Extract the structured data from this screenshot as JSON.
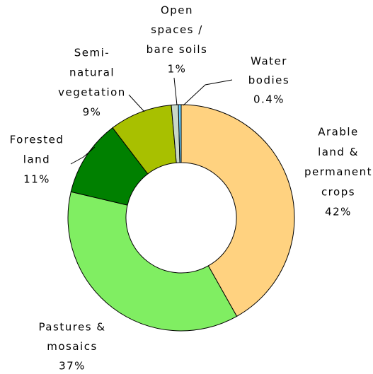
{
  "chart_data": {
    "type": "pie",
    "categories": [
      [
        "Arable",
        "land &",
        "permanent",
        "crops"
      ],
      [
        "Pastures &",
        "mosaics"
      ],
      [
        "Forested",
        "land"
      ],
      [
        "Semi-",
        "natural",
        "vegetation"
      ],
      [
        "Open",
        "spaces /",
        "bare soils"
      ],
      [
        "Water",
        "bodies"
      ]
    ],
    "values": [
      42,
      37,
      11,
      9,
      1,
      0.4
    ],
    "value_labels": [
      "42%",
      "37%",
      "11%",
      "9%",
      "1%",
      "0.4%"
    ],
    "colors": [
      "#ffd280",
      "#80ee62",
      "#008000",
      "#a8c000",
      "#c8d8c8",
      "#66ccff"
    ]
  }
}
